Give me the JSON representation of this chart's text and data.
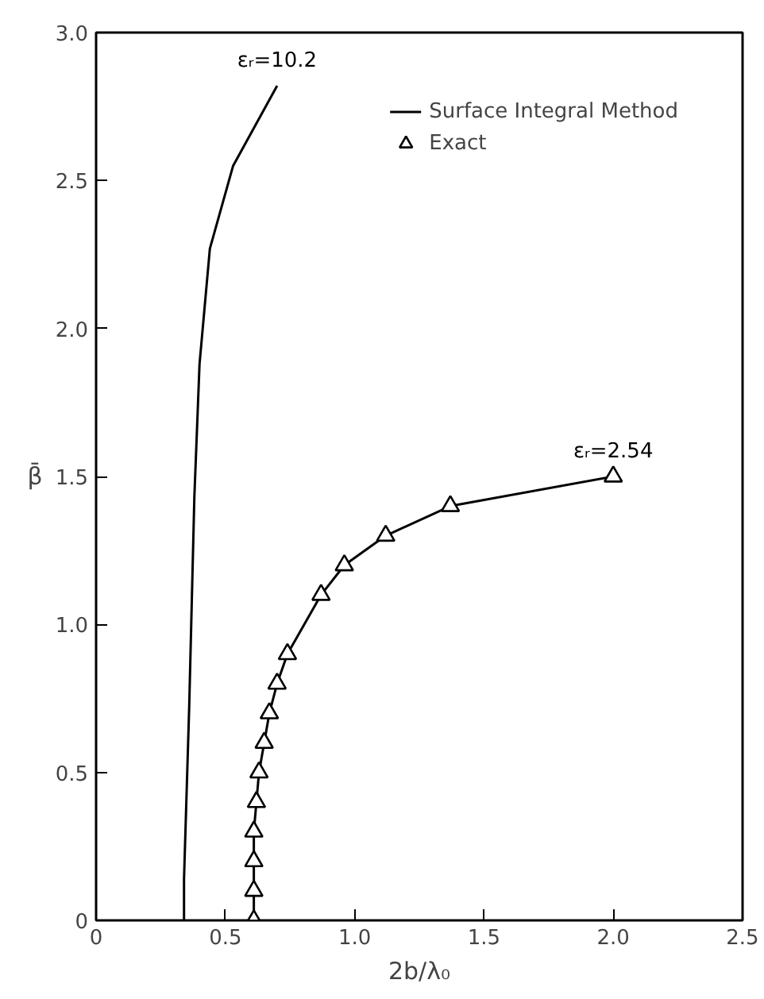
{
  "chart_data": {
    "type": "line",
    "xlabel": "2b/λ₀",
    "ylabel": "β̄",
    "xlim": [
      0,
      2.5
    ],
    "ylim": [
      0,
      3.0
    ],
    "xticks": [
      0,
      {
        "value": 0.5,
        "label": "0.5"
      },
      {
        "value": 1,
        "label": "1.0"
      },
      {
        "value": 1.5,
        "label": "1.5"
      },
      {
        "value": 2,
        "label": "2.0"
      },
      {
        "value": 2.5,
        "label": "2.5"
      }
    ],
    "yticks": [
      0,
      {
        "value": 0.5,
        "label": "0.5"
      },
      {
        "value": 1,
        "label": "1.0"
      },
      {
        "value": 1.5,
        "label": "1.5"
      },
      {
        "value": 2,
        "label": "2.0"
      },
      {
        "value": 2.5,
        "label": "2.5"
      },
      {
        "value": 3,
        "label": "3.0"
      }
    ],
    "grid": false,
    "legend": "top right",
    "series": [
      {
        "name": "Surface Integral Method",
        "color": "#000000",
        "marker": "none",
        "x": [
          0.34,
          0.34,
          0.36,
          0.38,
          0.4,
          0.44,
          0.53,
          0.7
        ],
        "values": [
          0,
          0.14,
          0.72,
          1.43,
          1.88,
          2.27,
          2.55,
          2.82
        ]
      },
      {
        "color": "#000000",
        "marker": "none",
        "x": [
          0.61,
          0.61,
          0.61,
          0.61,
          0.62,
          0.63,
          0.65,
          0.67,
          0.7,
          0.74,
          0.87,
          0.96,
          1.12,
          1.37,
          2.0
        ],
        "values": [
          0,
          0.1,
          0.2,
          0.3,
          0.4,
          0.5,
          0.6,
          0.7,
          0.8,
          0.9,
          1.1,
          1.2,
          1.3,
          1.4,
          1.5
        ]
      },
      {
        "name": "Exact",
        "type": "scatter",
        "color": "#000000",
        "marker": "triangle",
        "x": [
          0.61,
          0.61,
          0.61,
          0.61,
          0.62,
          0.63,
          0.65,
          0.67,
          0.7,
          0.74,
          0.87,
          0.96,
          1.12,
          1.37,
          2.0
        ],
        "values": [
          0,
          0.1,
          0.2,
          0.3,
          0.4,
          0.5,
          0.6,
          0.7,
          0.8,
          0.9,
          1.1,
          1.2,
          1.3,
          1.4,
          1.5
        ]
      }
    ],
    "annotations": [
      {
        "text": "εᵣ=10.2",
        "x": 0.7,
        "y": 2.82
      },
      {
        "text": "εᵣ=2.54",
        "x": 2.0,
        "y": 1.5
      }
    ]
  }
}
